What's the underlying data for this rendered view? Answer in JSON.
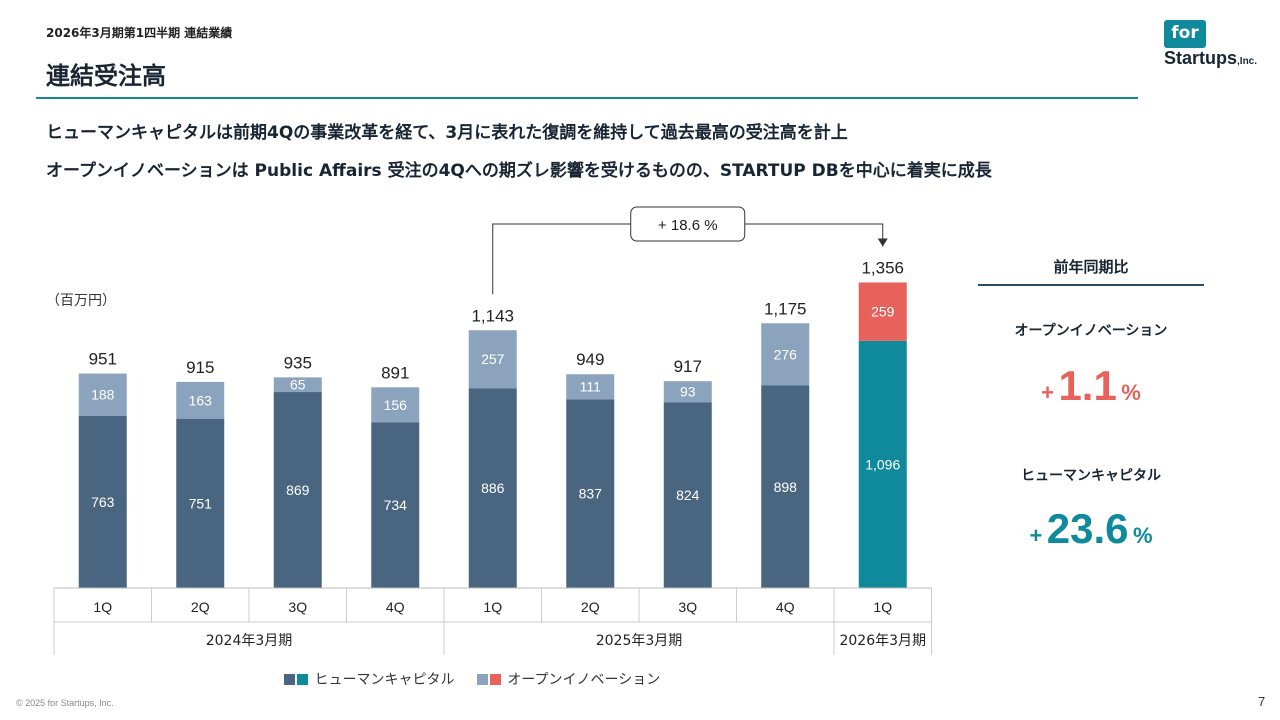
{
  "header": {
    "subtitle": "2026年3月期第1四半期 連結業績",
    "title": "連結受注高"
  },
  "logo": {
    "line1": "for",
    "line2": "Startups",
    "suffix": ",Inc."
  },
  "headlines": [
    "ヒューマンキャピタルは前期4Qの事業改革を経て、3月に表れた復調を維持して過去最高の受注高を計上",
    "オープンイノベーションは Public Affairs 受注の4Qへの期ズレ影響を受けるものの、STARTUP DBを中心に着実に成長"
  ],
  "chart_data": {
    "type": "bar",
    "stacked": true,
    "unit_label": "（百万円）",
    "categories": [
      "1Q",
      "2Q",
      "3Q",
      "4Q",
      "1Q",
      "2Q",
      "3Q",
      "4Q",
      "1Q"
    ],
    "groups": [
      {
        "label": "2024年3月期",
        "count": 4
      },
      {
        "label": "2025年3月期",
        "count": 4
      },
      {
        "label": "2026年3月期",
        "count": 1
      }
    ],
    "series": [
      {
        "name": "ヒューマンキャピタル",
        "values": [
          763,
          751,
          869,
          734,
          886,
          837,
          824,
          898,
          1096
        ]
      },
      {
        "name": "オープンイノベーション",
        "values": [
          188,
          163,
          65,
          156,
          257,
          111,
          93,
          276,
          259
        ]
      }
    ],
    "totals": [
      "951",
      "915",
      "935",
      "891",
      "1,143",
      "949",
      "917",
      "1,175",
      "1,356"
    ],
    "segment_labels": {
      "hc": [
        "763",
        "751",
        "869",
        "734",
        "886",
        "837",
        "824",
        "898",
        "1,096"
      ],
      "oi": [
        "188",
        "163",
        "65",
        "156",
        "257",
        "111",
        "93",
        "276",
        "259"
      ]
    },
    "highlight_index": 8,
    "annotation": {
      "text": "+ 18.6 %",
      "from_index": 4,
      "to_index": 8
    },
    "ylim": [
      0,
      1400
    ],
    "legend_position": "bottom"
  },
  "colors": {
    "hc": "#4a6580",
    "oi": "#8ba3bd",
    "hc_current": "#0f8a9d",
    "oi_current": "#e6625a"
  },
  "yoy": {
    "title": "前年同期比",
    "items": [
      {
        "label": "オープンイノベーション",
        "plus": "+",
        "value": "1.1",
        "pct": "%",
        "color": "#e6625a"
      },
      {
        "label": "ヒューマンキャピタル",
        "plus": "+",
        "value": "23.6",
        "pct": "%",
        "color": "#0f8a9d"
      }
    ]
  },
  "legend": {
    "hc": "ヒューマンキャピタル",
    "oi": "オープンイノベーション"
  },
  "footer": {
    "copyright": "© 2025 for Startups, Inc.",
    "page": "7"
  }
}
